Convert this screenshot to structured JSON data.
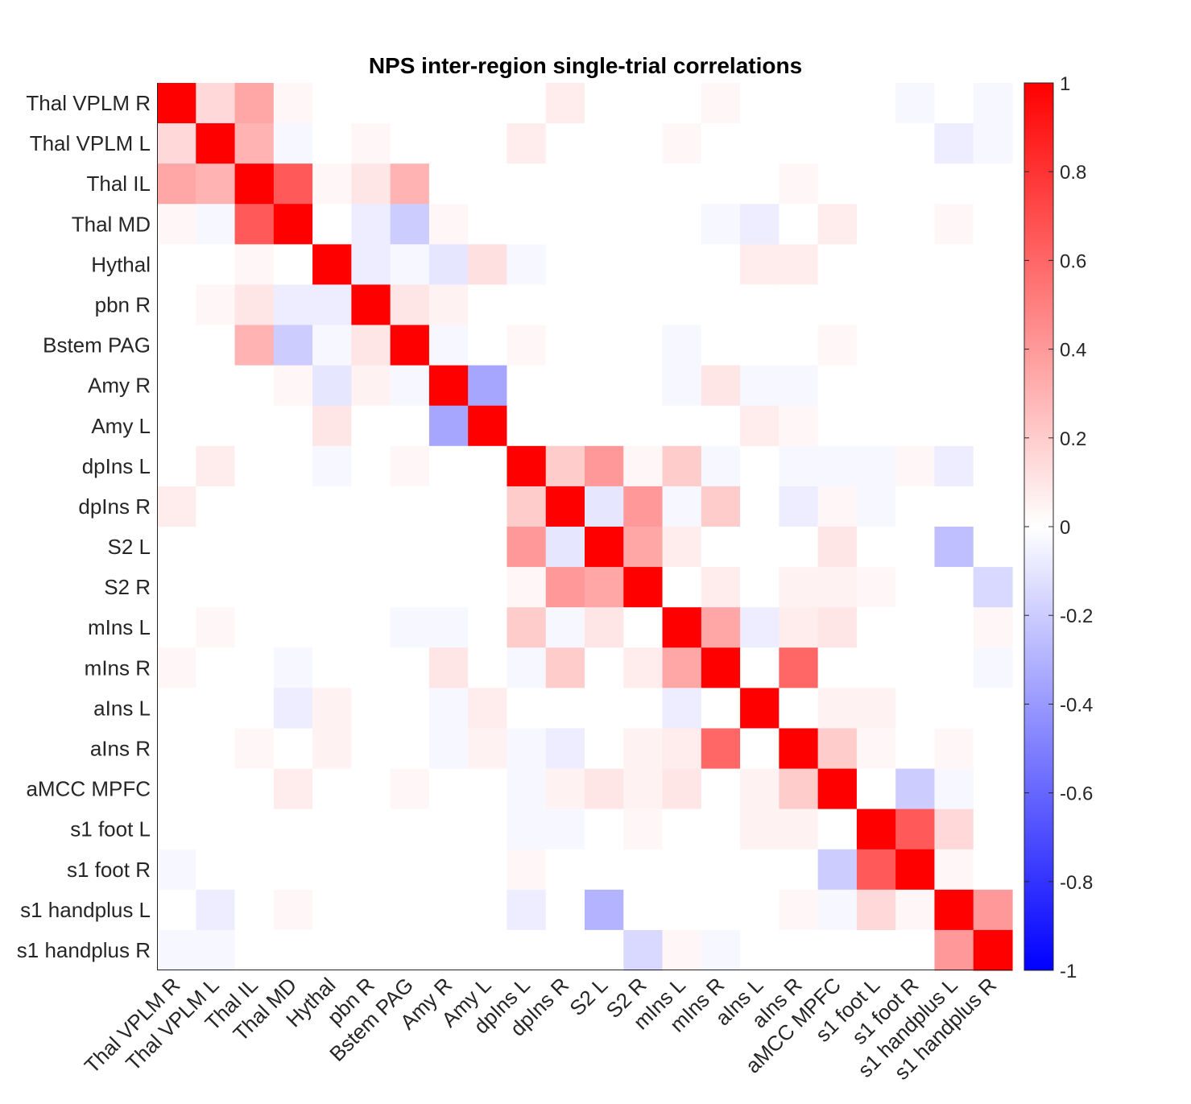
{
  "chart_data": {
    "type": "heatmap",
    "title": "NPS inter-region single-trial correlations",
    "xlabel": "",
    "ylabel": "",
    "labels": [
      "Thal VPLM R",
      "Thal VPLM L",
      "Thal IL",
      "Thal MD",
      "Hythal",
      "pbn R",
      "Bstem PAG",
      "Amy R",
      "Amy L",
      "dpIns L",
      "dpIns R",
      "S2 L",
      "S2 R",
      "mIns L",
      "mIns R",
      "aIns L",
      "aIns R",
      "aMCC MPFC",
      "s1 foot L",
      "s1 foot R",
      "s1 handplus L",
      "s1 handplus R"
    ],
    "clim": [
      -1,
      1
    ],
    "colorbar_ticks": [
      {
        "value": 1,
        "label": "1"
      },
      {
        "value": 0.8,
        "label": "0.8"
      },
      {
        "value": 0.6,
        "label": "0.6"
      },
      {
        "value": 0.4,
        "label": "0.4"
      },
      {
        "value": 0.2,
        "label": "0.2"
      },
      {
        "value": 0,
        "label": "0"
      },
      {
        "value": -0.2,
        "label": "-0.2"
      },
      {
        "value": -0.4,
        "label": "-0.4"
      },
      {
        "value": -0.6,
        "label": "-0.6"
      },
      {
        "value": -0.8,
        "label": "-0.8"
      },
      {
        "value": -1,
        "label": "-1"
      }
    ],
    "colormap": {
      "negative": "#0000ff",
      "zero": "#ffffff",
      "positive": "#ff0000"
    },
    "matrix": [
      [
        1,
        0.15,
        0.35,
        0.03,
        0,
        0,
        0,
        0,
        0,
        0,
        0.07,
        0,
        0,
        0,
        0.03,
        0,
        0,
        0,
        0,
        -0.03,
        0,
        -0.03
      ],
      [
        0.15,
        1,
        0.3,
        -0.03,
        0,
        0.03,
        0,
        0,
        0,
        0.07,
        0,
        0,
        0,
        0.03,
        0,
        0,
        0,
        0,
        0,
        0,
        -0.07,
        -0.03
      ],
      [
        0.35,
        0.3,
        1,
        0.65,
        0.03,
        0.1,
        0.3,
        0,
        0,
        0,
        0,
        0,
        0,
        0,
        0,
        0,
        0.03,
        0,
        0,
        0,
        0,
        0
      ],
      [
        0.03,
        -0.03,
        0.65,
        1,
        0,
        -0.07,
        -0.2,
        0.03,
        0,
        0,
        0,
        0,
        0,
        0,
        -0.03,
        -0.07,
        0,
        0.07,
        0,
        0,
        0.03,
        0
      ],
      [
        0,
        0,
        0.03,
        0,
        1,
        -0.07,
        -0.03,
        -0.1,
        0.12,
        -0.03,
        0,
        0,
        0,
        0,
        0,
        0.07,
        0.07,
        0,
        0,
        0,
        0,
        0
      ],
      [
        0,
        0.03,
        0.1,
        -0.07,
        -0.07,
        1,
        0.1,
        0.05,
        0,
        0,
        0,
        0,
        0,
        0,
        0,
        0,
        0,
        0,
        0,
        0,
        0,
        0
      ],
      [
        0,
        0,
        0.3,
        -0.2,
        -0.03,
        0.1,
        1,
        -0.03,
        0,
        0.03,
        0,
        0,
        0,
        -0.03,
        0,
        0,
        0,
        0.03,
        0,
        0,
        0,
        0
      ],
      [
        0,
        0,
        0,
        0.03,
        -0.1,
        0.05,
        -0.03,
        1,
        -0.35,
        0,
        0,
        0,
        0,
        -0.03,
        0.1,
        -0.03,
        -0.03,
        0,
        0,
        0,
        0,
        0
      ],
      [
        0,
        0,
        0,
        0,
        0.1,
        0,
        0,
        -0.35,
        1,
        0,
        0,
        0,
        0,
        0,
        0,
        0.07,
        0.03,
        0,
        0,
        0,
        0,
        0
      ],
      [
        0,
        0.07,
        0,
        0,
        -0.03,
        0,
        0.03,
        0,
        0,
        1,
        0.2,
        0.4,
        0.03,
        0.2,
        -0.03,
        0,
        -0.03,
        -0.03,
        -0.03,
        0.03,
        -0.07,
        0
      ],
      [
        0.07,
        0,
        0,
        0,
        0,
        0,
        0,
        0,
        0,
        0.2,
        1,
        -0.1,
        0.4,
        -0.03,
        0.2,
        0,
        -0.07,
        0.03,
        -0.03,
        0,
        0,
        0
      ],
      [
        0,
        0,
        0,
        0,
        0,
        0,
        0,
        0,
        0,
        0.4,
        -0.1,
        1,
        0.35,
        0.07,
        0,
        0,
        0,
        0.1,
        0,
        0,
        -0.25,
        0
      ],
      [
        0,
        0,
        0,
        0,
        0,
        0,
        0,
        0,
        0,
        0.03,
        0.4,
        0.35,
        1,
        0,
        0.07,
        0,
        0.05,
        0.05,
        0.03,
        0,
        0,
        -0.15
      ],
      [
        0,
        0.03,
        0,
        0,
        0,
        0,
        -0.03,
        -0.03,
        0,
        0.2,
        -0.03,
        0.1,
        0,
        1,
        0.35,
        -0.07,
        0.07,
        0.1,
        0,
        0,
        0,
        0.03
      ],
      [
        0.03,
        0,
        0,
        -0.03,
        0,
        0,
        0,
        0.1,
        0,
        -0.03,
        0.2,
        0,
        0.07,
        0.35,
        1,
        0,
        0.6,
        0,
        0,
        0,
        0,
        -0.03
      ],
      [
        0,
        0,
        0,
        -0.07,
        0.05,
        0,
        0,
        -0.03,
        0.07,
        0,
        0,
        0,
        0,
        -0.07,
        0,
        1,
        0,
        0.05,
        0.05,
        0,
        0,
        0
      ],
      [
        0,
        0,
        0.03,
        0,
        0.05,
        0,
        0,
        -0.03,
        0.05,
        -0.03,
        -0.07,
        0,
        0.05,
        0.07,
        0.6,
        0,
        1,
        0.2,
        0.03,
        0,
        0.03,
        0
      ],
      [
        0,
        0,
        0,
        0.07,
        0,
        0,
        0.03,
        0,
        0,
        -0.03,
        0.05,
        0.1,
        0.05,
        0.1,
        0,
        0.05,
        0.2,
        1,
        0,
        -0.2,
        -0.03,
        0
      ],
      [
        0,
        0,
        0,
        0,
        0,
        0,
        0,
        0,
        0,
        -0.03,
        -0.03,
        0,
        0.03,
        0,
        0,
        0.05,
        0.05,
        0,
        1,
        0.65,
        0.15,
        0
      ],
      [
        -0.03,
        0,
        0,
        0,
        0,
        0,
        0,
        0,
        0,
        0.03,
        0,
        0,
        0,
        0,
        0,
        0,
        0,
        -0.2,
        0.65,
        1,
        0.03,
        0
      ],
      [
        0,
        -0.07,
        0,
        0.03,
        0,
        0,
        0,
        0,
        0,
        -0.07,
        0,
        -0.3,
        0,
        0,
        0,
        0,
        0.03,
        -0.03,
        0.15,
        0.03,
        1,
        0.4
      ],
      [
        -0.03,
        -0.03,
        0,
        0,
        0,
        0,
        0,
        0,
        0,
        0,
        0,
        0,
        -0.15,
        0.03,
        -0.03,
        0,
        0,
        0,
        0,
        0,
        0.4,
        1
      ]
    ]
  }
}
